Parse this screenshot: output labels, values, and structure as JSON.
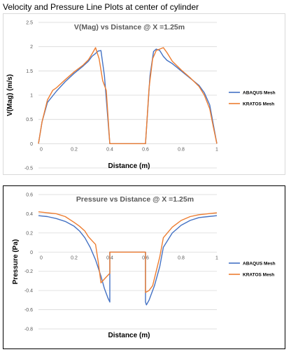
{
  "page_title": "Velocity and Pressure Line Plots at center of cylinder",
  "colors": {
    "abaqus": "#4472c4",
    "kratos": "#ed7d31",
    "grid": "#d9d9d9"
  },
  "chart_data": [
    {
      "type": "line",
      "title": "V(Mag) vs Distance @ X =1.25m",
      "xlabel": "Distance (m)",
      "ylabel": "V(Mag) (m/s)",
      "xlim": [
        0,
        1
      ],
      "ylim": [
        -0.5,
        2.5
      ],
      "xticks": [
        "0",
        "0.2",
        "0.4",
        "0.6",
        "0.8",
        "1"
      ],
      "yticks": [
        "-0.5",
        "0",
        "0.5",
        "1",
        "1.5",
        "2",
        "2.5"
      ],
      "grid": true,
      "legend_position": "right",
      "series": [
        {
          "name": "ABAQUS Mesh",
          "x": [
            0,
            0.02,
            0.05,
            0.1,
            0.15,
            0.2,
            0.25,
            0.28,
            0.3,
            0.32,
            0.335,
            0.35,
            0.37,
            0.4,
            0.6,
            0.625,
            0.645,
            0.66,
            0.68,
            0.7,
            0.72,
            0.75,
            0.8,
            0.85,
            0.9,
            0.93,
            0.96,
            0.98,
            1
          ],
          "y": [
            0,
            0.45,
            0.85,
            1.08,
            1.28,
            1.45,
            1.6,
            1.7,
            1.8,
            1.86,
            1.91,
            1.92,
            1.4,
            0,
            0,
            1.4,
            1.9,
            1.95,
            1.92,
            1.8,
            1.72,
            1.65,
            1.5,
            1.35,
            1.2,
            1.05,
            0.8,
            0.4,
            0
          ]
        },
        {
          "name": "KRATOS Mesh",
          "x": [
            0,
            0.02,
            0.05,
            0.08,
            0.1,
            0.15,
            0.2,
            0.25,
            0.28,
            0.3,
            0.32,
            0.34,
            0.36,
            0.38,
            0.4,
            0.6,
            0.62,
            0.64,
            0.66,
            0.68,
            0.7,
            0.72,
            0.75,
            0.8,
            0.85,
            0.9,
            0.93,
            0.96,
            0.98,
            1
          ],
          "y": [
            0,
            0.45,
            0.9,
            1.1,
            1.15,
            1.32,
            1.48,
            1.62,
            1.73,
            1.85,
            1.98,
            1.75,
            1.3,
            1.1,
            0,
            0,
            1.15,
            1.75,
            1.92,
            1.95,
            1.98,
            1.88,
            1.7,
            1.52,
            1.36,
            1.18,
            1.0,
            0.72,
            0.35,
            0
          ]
        }
      ]
    },
    {
      "type": "line",
      "title": "Pressure vs Distance @ X =1.25m",
      "xlabel": "Distance (m)",
      "ylabel": "Pressure (Pa)",
      "xlim": [
        0,
        1
      ],
      "ylim": [
        -0.8,
        0.6
      ],
      "xticks": [
        "0",
        "0.2",
        "0.4",
        "0.6",
        "0.8",
        "1"
      ],
      "yticks": [
        "-0.8",
        "-0.6",
        "-0.4",
        "-0.2",
        "0",
        "0.2",
        "0.4",
        "0.6"
      ],
      "grid": true,
      "legend_position": "right",
      "series": [
        {
          "name": "ABAQUS Mesh",
          "x": [
            0,
            0.05,
            0.1,
            0.15,
            0.2,
            0.23,
            0.26,
            0.29,
            0.32,
            0.35,
            0.37,
            0.39,
            0.4,
            0.4,
            0.6,
            0.6,
            0.605,
            0.62,
            0.65,
            0.68,
            0.7,
            0.75,
            0.8,
            0.85,
            0.9,
            0.95,
            1
          ],
          "y": [
            0.38,
            0.37,
            0.35,
            0.32,
            0.27,
            0.22,
            0.15,
            0.05,
            -0.08,
            -0.25,
            -0.38,
            -0.48,
            -0.52,
            0,
            0,
            -0.52,
            -0.55,
            -0.5,
            -0.35,
            -0.15,
            0.05,
            0.2,
            0.28,
            0.33,
            0.36,
            0.37,
            0.38
          ]
        },
        {
          "name": "KRATOS Mesh",
          "x": [
            0,
            0.05,
            0.1,
            0.15,
            0.2,
            0.23,
            0.26,
            0.28,
            0.3,
            0.32,
            0.335,
            0.35,
            0.36,
            0.38,
            0.4,
            0.4,
            0.6,
            0.6,
            0.62,
            0.64,
            0.66,
            0.68,
            0.7,
            0.75,
            0.8,
            0.85,
            0.9,
            0.95,
            1
          ],
          "y": [
            0.42,
            0.41,
            0.4,
            0.37,
            0.31,
            0.27,
            0.22,
            0.16,
            0.12,
            0.08,
            -0.1,
            -0.32,
            -0.3,
            -0.26,
            -0.22,
            0,
            0,
            -0.42,
            -0.4,
            -0.35,
            -0.2,
            -0.05,
            0.15,
            0.26,
            0.33,
            0.37,
            0.39,
            0.4,
            0.41
          ]
        }
      ]
    }
  ]
}
